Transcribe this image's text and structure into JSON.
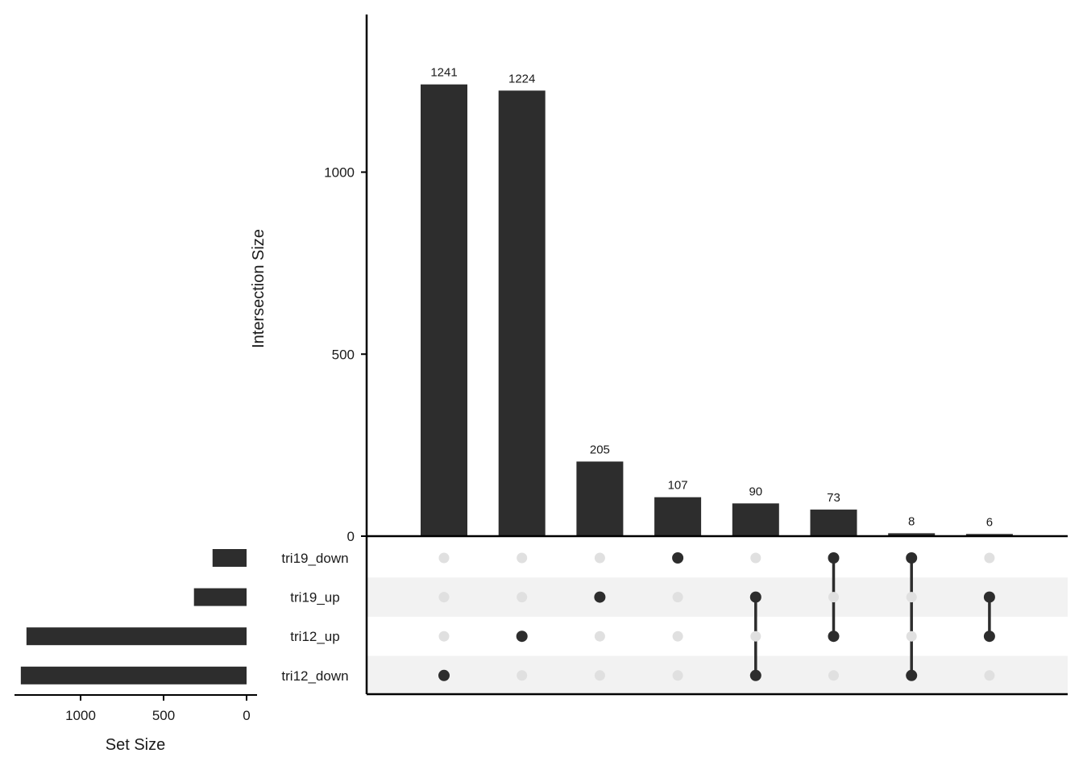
{
  "chart_data": {
    "type": "upset",
    "sets": [
      "tri19_down",
      "tri19_up",
      "tri12_up",
      "tri12_down"
    ],
    "set_sizes": [
      205,
      317,
      1326,
      1360
    ],
    "set_size_axis": {
      "label": "Set Size",
      "ticks": [
        1000,
        500,
        0
      ],
      "tick_labels": [
        "1000",
        "500",
        "0"
      ],
      "xlim": [
        0,
        1400
      ],
      "reversed": true
    },
    "intersection_axis": {
      "label": "Intersection Size",
      "ticks": [
        0,
        500,
        1000
      ],
      "tick_labels": [
        "0",
        "500",
        "1000"
      ],
      "ylim": [
        0,
        1400
      ]
    },
    "intersections": [
      {
        "sets": [
          "tri12_down"
        ],
        "size": 1241,
        "label": "1241"
      },
      {
        "sets": [
          "tri12_up"
        ],
        "size": 1224,
        "label": "1224"
      },
      {
        "sets": [
          "tri19_up"
        ],
        "size": 205,
        "label": "205"
      },
      {
        "sets": [
          "tri19_down"
        ],
        "size": 107,
        "label": "107"
      },
      {
        "sets": [
          "tri19_up",
          "tri12_down"
        ],
        "size": 90,
        "label": "90"
      },
      {
        "sets": [
          "tri19_down",
          "tri12_up"
        ],
        "size": 73,
        "label": "73"
      },
      {
        "sets": [
          "tri19_down",
          "tri12_down"
        ],
        "size": 8,
        "label": "8"
      },
      {
        "sets": [
          "tri19_up",
          "tri12_up"
        ],
        "size": 6,
        "label": "6"
      }
    ],
    "colors": {
      "bar": "#2d2d2d",
      "dot_active": "#2d2d2d",
      "dot_inactive": "#e0e0e0",
      "stripe": "#f2f2f2",
      "axis": "#000000"
    }
  }
}
